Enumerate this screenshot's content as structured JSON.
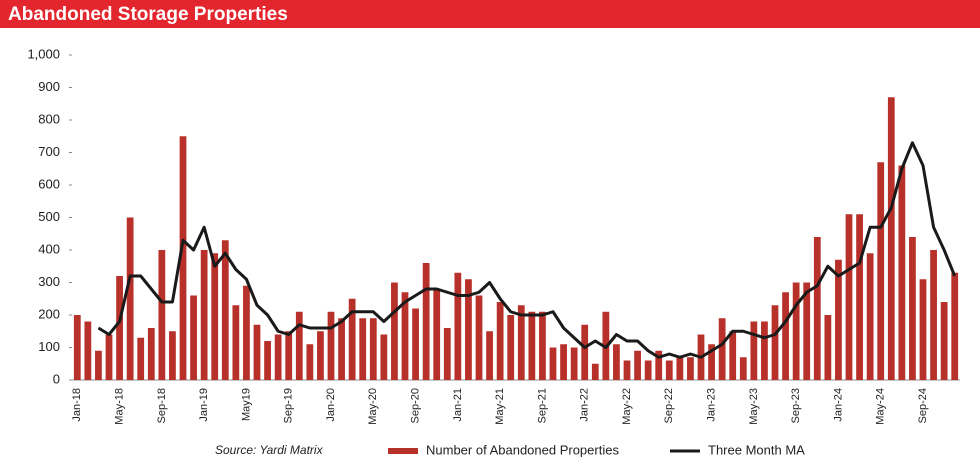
{
  "chart_data": {
    "type": "bar",
    "title": "Abandoned Storage Properties",
    "source": "Source: Yardi Matrix",
    "categories": [
      "Jan-18",
      null,
      null,
      null,
      "May-18",
      null,
      null,
      null,
      "Sep-18",
      null,
      null,
      null,
      "Jan-19",
      null,
      null,
      null,
      "May19",
      null,
      null,
      null,
      "Sep-19",
      null,
      null,
      null,
      "Jan-20",
      null,
      null,
      null,
      "May-20",
      null,
      null,
      null,
      "Sep-20",
      null,
      null,
      null,
      "Jan-21",
      null,
      null,
      null,
      "May-21",
      null,
      null,
      null,
      "Sep-21",
      null,
      null,
      null,
      "Jan-22",
      null,
      null,
      null,
      "May-22",
      null,
      null,
      null,
      "Sep-22",
      null,
      null,
      null,
      "Jan-23",
      null,
      null,
      null,
      "May-23",
      null,
      null,
      null,
      "Sep-23",
      null,
      null,
      null,
      "Jan-24",
      null,
      null,
      null,
      "May-24",
      null,
      null,
      null,
      "Sep-24",
      null,
      null,
      null
    ],
    "series": [
      {
        "name": "Number of Abandoned Properties",
        "color": "#b8302a",
        "values": [
          200,
          180,
          90,
          140,
          320,
          500,
          130,
          160,
          400,
          150,
          750,
          260,
          400,
          390,
          430,
          230,
          290,
          170,
          120,
          140,
          150,
          210,
          110,
          150,
          210,
          190,
          250,
          190,
          190,
          140,
          300,
          270,
          220,
          360,
          280,
          160,
          330,
          310,
          260,
          150,
          240,
          200,
          230,
          210,
          210,
          100,
          110,
          100,
          170,
          50,
          210,
          110,
          60,
          90,
          60,
          90,
          60,
          70,
          70,
          140,
          110,
          190,
          150,
          70,
          180,
          180,
          230,
          270,
          300,
          300,
          440,
          200,
          370,
          510,
          510,
          390,
          670,
          870,
          660,
          440,
          310,
          400,
          240,
          330
        ]
      },
      {
        "name": "Three Month MA",
        "color": "#1a1a1a",
        "type": "line",
        "values": [
          null,
          null,
          160,
          140,
          180,
          320,
          320,
          280,
          240,
          240,
          430,
          400,
          470,
          350,
          390,
          340,
          310,
          230,
          200,
          150,
          140,
          170,
          160,
          160,
          160,
          180,
          210,
          210,
          210,
          180,
          210,
          240,
          260,
          280,
          280,
          270,
          260,
          260,
          270,
          300,
          250,
          210,
          200,
          200,
          200,
          210,
          160,
          130,
          100,
          120,
          100,
          140,
          120,
          120,
          90,
          70,
          80,
          70,
          80,
          70,
          90,
          110,
          150,
          150,
          140,
          130,
          140,
          180,
          230,
          270,
          290,
          350,
          320,
          340,
          360,
          470,
          470,
          530,
          650,
          730,
          660,
          470,
          400,
          320
        ]
      }
    ],
    "ylim": [
      0,
      1000
    ],
    "yticks": [
      0,
      100,
      200,
      300,
      400,
      500,
      600,
      700,
      800,
      900,
      {
        "value": 1000,
        "label": "1,000"
      }
    ]
  }
}
